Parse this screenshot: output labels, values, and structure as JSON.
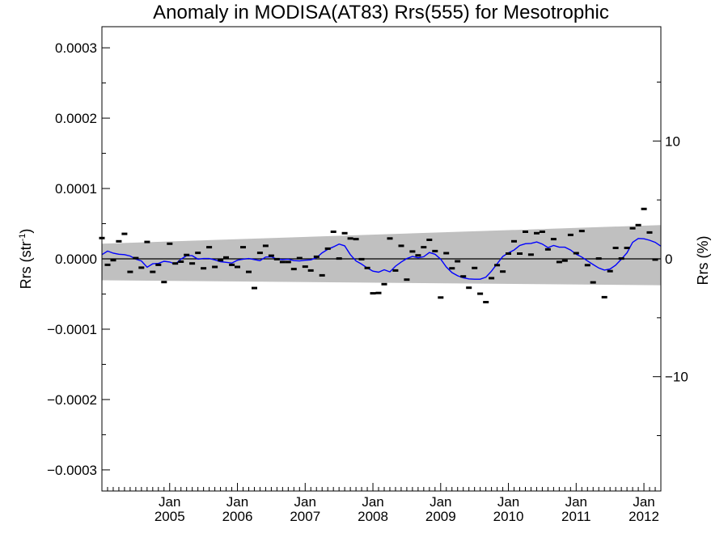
{
  "chart_data": {
    "type": "scatter",
    "title": "Anomaly in MODISA(AT83) Rrs(555) for Mesotrophic",
    "ylabel_left": {
      "pre": "Rrs (str",
      "sup": "-1",
      "post": ")"
    },
    "ylabel_right": "Rrs (%)",
    "xlim": [
      2004.0,
      2012.25
    ],
    "ylim": [
      -0.00033,
      0.00033
    ],
    "y2lim": [
      -19.7,
      19.7
    ],
    "yticks": [
      {
        "v": 0.0003,
        "label": "0.0003"
      },
      {
        "v": 0.0002,
        "label": "0.0002"
      },
      {
        "v": 0.0001,
        "label": "0.0001"
      },
      {
        "v": 0.0,
        "label": "0.0000"
      },
      {
        "v": -0.0001,
        "label": "−0.0001"
      },
      {
        "v": -0.0002,
        "label": "−0.0002"
      },
      {
        "v": -0.0003,
        "label": "−0.0003"
      }
    ],
    "y2ticks": [
      {
        "v": 10,
        "label": "10"
      },
      {
        "v": 0,
        "label": "0"
      },
      {
        "v": -10,
        "label": "−10"
      }
    ],
    "xticks": [
      {
        "v": 2005.0,
        "month": "Jan",
        "year": "2005"
      },
      {
        "v": 2006.0,
        "month": "Jan",
        "year": "2006"
      },
      {
        "v": 2007.0,
        "month": "Jan",
        "year": "2007"
      },
      {
        "v": 2008.0,
        "month": "Jan",
        "year": "2008"
      },
      {
        "v": 2009.0,
        "month": "Jan",
        "year": "2009"
      },
      {
        "v": 2010.0,
        "month": "Jan",
        "year": "2010"
      },
      {
        "v": 2011.0,
        "month": "Jan",
        "year": "2011"
      },
      {
        "v": 2012.0,
        "month": "Jan",
        "year": "2012"
      }
    ],
    "band": {
      "color": "#c0c0c0",
      "upper": [
        [
          2004.0,
          2.15e-05
        ],
        [
          2012.25,
          4.8e-05
        ]
      ],
      "lower": [
        [
          2004.0,
          -3.05e-05
        ],
        [
          2012.25,
          -3.75e-05
        ]
      ]
    },
    "zero_line_color": "#000000",
    "points_color": "#000000",
    "line_color": "#0000ff",
    "points": [
      [
        2004.0,
        2.95e-05
      ],
      [
        2004.083,
        -8.5e-06
      ],
      [
        2004.167,
        -2e-06
      ],
      [
        2004.25,
        2.5e-05
      ],
      [
        2004.333,
        3.55e-05
      ],
      [
        2004.417,
        -1.85e-05
      ],
      [
        2004.5,
        1e-06
      ],
      [
        2004.583,
        -1.25e-05
      ],
      [
        2004.667,
        2.4e-05
      ],
      [
        2004.75,
        -1.85e-05
      ],
      [
        2004.833,
        -8.5e-06
      ],
      [
        2004.917,
        -3.3e-05
      ],
      [
        2005.0,
        2.15e-05
      ],
      [
        2005.083,
        -6.5e-06
      ],
      [
        2005.167,
        -4e-06
      ],
      [
        2005.25,
        5.5e-06
      ],
      [
        2005.333,
        -6.5e-06
      ],
      [
        2005.417,
        8.5e-06
      ],
      [
        2005.5,
        -1.35e-05
      ],
      [
        2005.583,
        1.65e-05
      ],
      [
        2005.667,
        -1.15e-05
      ],
      [
        2005.75,
        -2e-06
      ],
      [
        2005.833,
        2e-06
      ],
      [
        2005.917,
        -8.5e-06
      ],
      [
        2006.0,
        -1.15e-05
      ],
      [
        2006.083,
        1.65e-05
      ],
      [
        2006.167,
        -1.85e-05
      ],
      [
        2006.25,
        -4.15e-05
      ],
      [
        2006.333,
        8.5e-06
      ],
      [
        2006.417,
        1.85e-05
      ],
      [
        2006.5,
        4.5e-06
      ],
      [
        2006.583,
        -5e-07
      ],
      [
        2006.667,
        -4.5e-06
      ],
      [
        2006.75,
        -4.5e-06
      ],
      [
        2006.833,
        -1.45e-05
      ],
      [
        2006.917,
        1e-06
      ],
      [
        2007.0,
        -1.1e-05
      ],
      [
        2007.083,
        -1.65e-05
      ],
      [
        2007.167,
        3e-06
      ],
      [
        2007.25,
        -2.35e-05
      ],
      [
        2007.333,
        1.45e-05
      ],
      [
        2007.417,
        3.85e-05
      ],
      [
        2007.5,
        5e-07
      ],
      [
        2007.583,
        3.65e-05
      ],
      [
        2007.667,
        2.9e-05
      ],
      [
        2007.75,
        2.8e-05
      ],
      [
        2007.833,
        -5e-07
      ],
      [
        2007.917,
        -1.3e-05
      ],
      [
        2008.0,
        -4.9e-05
      ],
      [
        2008.083,
        -4.85e-05
      ],
      [
        2008.167,
        -3.6e-05
      ],
      [
        2008.25,
        2.9e-05
      ],
      [
        2008.333,
        -1.65e-05
      ],
      [
        2008.417,
        1.85e-05
      ],
      [
        2008.5,
        -2.95e-05
      ],
      [
        2008.583,
        1.05e-05
      ],
      [
        2008.667,
        5e-06
      ],
      [
        2008.75,
        1.65e-05
      ],
      [
        2008.833,
        2.7e-05
      ],
      [
        2008.917,
        1.1e-05
      ],
      [
        2009.0,
        -5.5e-05
      ],
      [
        2009.083,
        8e-06
      ],
      [
        2009.167,
        -1.35e-05
      ],
      [
        2009.25,
        -3.5e-06
      ],
      [
        2009.333,
        -2.5e-05
      ],
      [
        2009.417,
        -4.1e-05
      ],
      [
        2009.5,
        -1.3e-05
      ],
      [
        2009.583,
        -4.95e-05
      ],
      [
        2009.667,
        -6.15e-05
      ],
      [
        2009.75,
        -2.75e-05
      ],
      [
        2009.833,
        -9e-06
      ],
      [
        2009.917,
        -1.8e-05
      ],
      [
        2010.0,
        7.5e-06
      ],
      [
        2010.083,
        2.5e-05
      ],
      [
        2010.167,
        7.5e-06
      ],
      [
        2010.25,
        3.85e-05
      ],
      [
        2010.333,
        6e-06
      ],
      [
        2010.417,
        3.65e-05
      ],
      [
        2010.5,
        3.85e-05
      ],
      [
        2010.583,
        1.35e-05
      ],
      [
        2010.667,
        2.8e-05
      ],
      [
        2010.75,
        -4.5e-06
      ],
      [
        2010.833,
        -2.5e-06
      ],
      [
        2010.917,
        3.4e-05
      ],
      [
        2011.0,
        8e-06
      ],
      [
        2011.083,
        3.95e-05
      ],
      [
        2011.167,
        -9e-06
      ],
      [
        2011.25,
        -3.35e-05
      ],
      [
        2011.333,
        5e-07
      ],
      [
        2011.417,
        -5.45e-05
      ],
      [
        2011.5,
        -1.75e-05
      ],
      [
        2011.583,
        1.55e-05
      ],
      [
        2011.667,
        5e-07
      ],
      [
        2011.75,
        1.55e-05
      ],
      [
        2011.833,
        4.35e-05
      ],
      [
        2011.917,
        4.8e-05
      ],
      [
        2012.0,
        7.1e-05
      ],
      [
        2012.083,
        3.75e-05
      ],
      [
        2012.167,
        -1e-06
      ]
    ],
    "smoothed": [
      [
        2004.0,
        6e-06
      ],
      [
        2004.083,
        1.1e-05
      ],
      [
        2004.167,
        8e-06
      ],
      [
        2004.25,
        6.5e-06
      ],
      [
        2004.333,
        6e-06
      ],
      [
        2004.417,
        4e-06
      ],
      [
        2004.5,
        -5e-07
      ],
      [
        2004.583,
        -3e-06
      ],
      [
        2004.667,
        -1.2e-05
      ],
      [
        2004.75,
        -7e-06
      ],
      [
        2004.833,
        -6.5e-06
      ],
      [
        2004.917,
        -3.5e-06
      ],
      [
        2005.0,
        -4.5e-06
      ],
      [
        2005.083,
        -7.5e-06
      ],
      [
        2005.167,
        -5e-07
      ],
      [
        2005.25,
        4.5e-06
      ],
      [
        2005.333,
        4.5e-06
      ],
      [
        2005.417,
        -5e-07
      ],
      [
        2005.5,
        5e-07
      ],
      [
        2005.583,
        5e-07
      ],
      [
        2005.667,
        -1.5e-06
      ],
      [
        2005.75,
        -4e-06
      ],
      [
        2005.833,
        -5e-06
      ],
      [
        2005.917,
        -6e-06
      ],
      [
        2006.0,
        -2e-06
      ],
      [
        2006.083,
        -5e-07
      ],
      [
        2006.167,
        5e-07
      ],
      [
        2006.25,
        -1e-06
      ],
      [
        2006.333,
        -2.5e-06
      ],
      [
        2006.417,
        2.5e-06
      ],
      [
        2006.5,
        3e-06
      ],
      [
        2006.583,
        -5e-07
      ],
      [
        2006.667,
        -1e-06
      ],
      [
        2006.75,
        -5e-07
      ],
      [
        2006.833,
        -2.5e-06
      ],
      [
        2006.917,
        -3e-06
      ],
      [
        2007.0,
        -2e-06
      ],
      [
        2007.083,
        -1.5e-06
      ],
      [
        2007.167,
        1.5e-06
      ],
      [
        2007.25,
        8.5e-06
      ],
      [
        2007.333,
        1.35e-05
      ],
      [
        2007.417,
        1.7e-05
      ],
      [
        2007.5,
        2.1e-05
      ],
      [
        2007.583,
        1.85e-05
      ],
      [
        2007.667,
        6e-06
      ],
      [
        2007.75,
        -3e-06
      ],
      [
        2007.833,
        -7.5e-06
      ],
      [
        2007.917,
        -1.3e-05
      ],
      [
        2008.0,
        -1.75e-05
      ],
      [
        2008.083,
        -1.9e-05
      ],
      [
        2008.167,
        -1.55e-05
      ],
      [
        2008.25,
        -1.85e-05
      ],
      [
        2008.333,
        -1.05e-05
      ],
      [
        2008.417,
        -4.5e-06
      ],
      [
        2008.5,
        5e-07
      ],
      [
        2008.583,
        3.5e-06
      ],
      [
        2008.667,
        1.5e-06
      ],
      [
        2008.75,
        3e-06
      ],
      [
        2008.833,
        9e-06
      ],
      [
        2008.917,
        6.5e-06
      ],
      [
        2009.0,
        -5e-07
      ],
      [
        2009.083,
        -1.15e-05
      ],
      [
        2009.167,
        -1.95e-05
      ],
      [
        2009.25,
        -2.4e-05
      ],
      [
        2009.333,
        -2.7e-05
      ],
      [
        2009.417,
        -2.85e-05
      ],
      [
        2009.5,
        -2.9e-05
      ],
      [
        2009.583,
        -2.9e-05
      ],
      [
        2009.667,
        -2.6e-05
      ],
      [
        2009.75,
        -1.75e-05
      ],
      [
        2009.833,
        -7e-06
      ],
      [
        2009.917,
        3.5e-06
      ],
      [
        2010.0,
        8.5e-06
      ],
      [
        2010.083,
        1.25e-05
      ],
      [
        2010.167,
        1.9e-05
      ],
      [
        2010.25,
        2.15e-05
      ],
      [
        2010.333,
        2.2e-05
      ],
      [
        2010.417,
        2.4e-05
      ],
      [
        2010.5,
        2.1e-05
      ],
      [
        2010.583,
        1.6e-05
      ],
      [
        2010.667,
        1.9e-05
      ],
      [
        2010.75,
        1.65e-05
      ],
      [
        2010.833,
        1.65e-05
      ],
      [
        2010.917,
        1.25e-05
      ],
      [
        2011.0,
        6.5e-06
      ],
      [
        2011.083,
        2.5e-06
      ],
      [
        2011.167,
        -3e-06
      ],
      [
        2011.25,
        -8e-06
      ],
      [
        2011.333,
        -1.3e-05
      ],
      [
        2011.417,
        -1.6e-05
      ],
      [
        2011.5,
        -1.45e-05
      ],
      [
        2011.583,
        -9e-06
      ],
      [
        2011.667,
        -5e-07
      ],
      [
        2011.75,
        8.5e-06
      ],
      [
        2011.833,
        2.35e-05
      ],
      [
        2011.917,
        2.9e-05
      ],
      [
        2012.0,
        2.85e-05
      ],
      [
        2012.083,
        2.65e-05
      ],
      [
        2012.167,
        2.35e-05
      ],
      [
        2012.25,
        1.8e-05
      ]
    ]
  }
}
